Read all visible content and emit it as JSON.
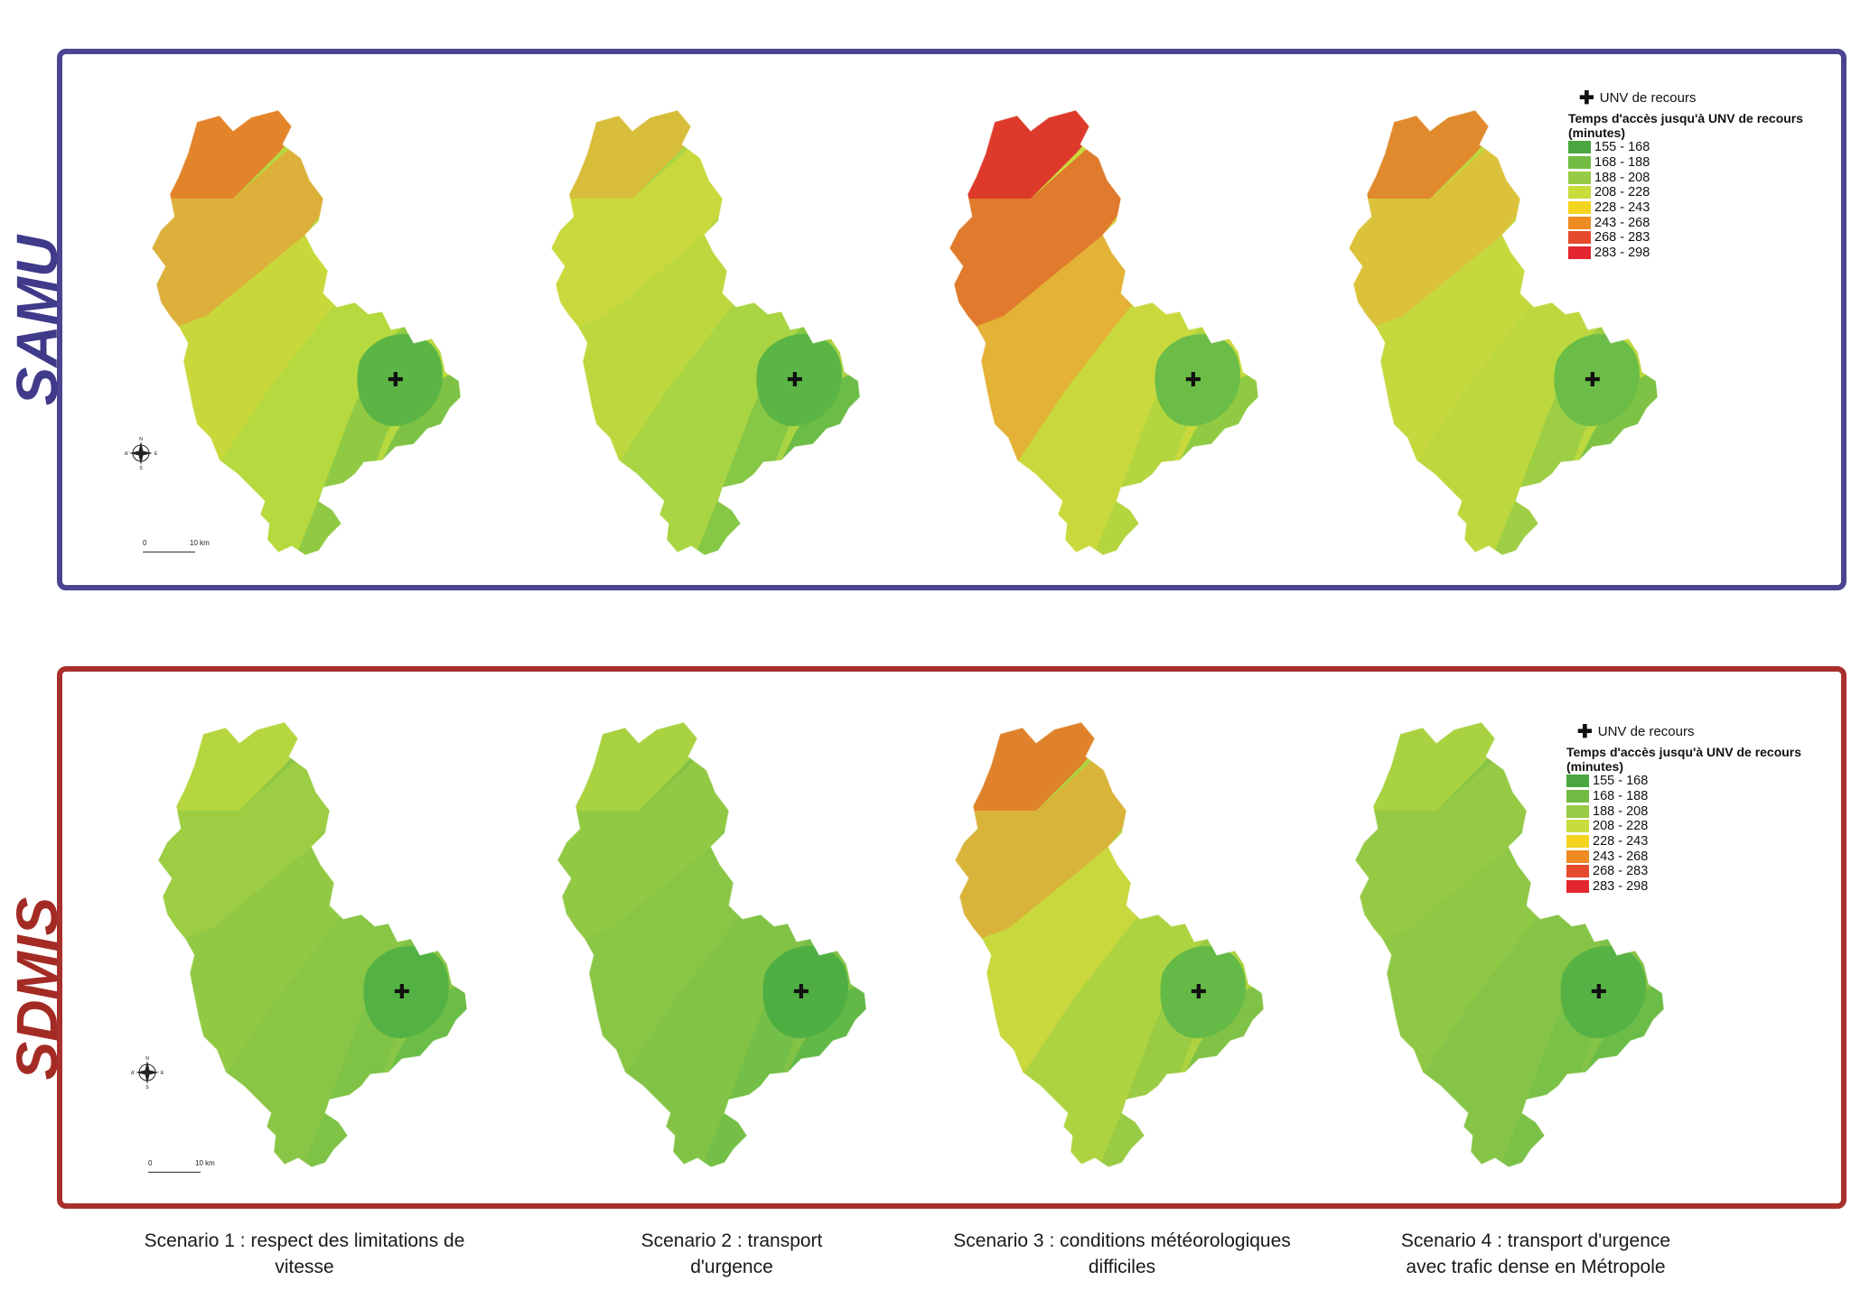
{
  "panels": [
    {
      "id": "samu",
      "label": "SAMU",
      "color": "#4a4590",
      "maps": [
        {
          "zones": [
            "#e3842b",
            "#dcb03a",
            "#c8d83b",
            "#b5d93e",
            "#8fca42",
            "#7dc245",
            "#5bb544"
          ]
        },
        {
          "zones": [
            "#d8bd3a",
            "#c9d93d",
            "#bdd83e",
            "#a9d443",
            "#86c845",
            "#6cbd48",
            "#5bb544"
          ]
        },
        {
          "zones": [
            "#de3a2c",
            "#e07a2c",
            "#e3b236",
            "#c9d93d",
            "#b3d63f",
            "#8fca42",
            "#6cbd48"
          ]
        },
        {
          "zones": [
            "#e08a2d",
            "#dcc23b",
            "#c5d83d",
            "#bcd83e",
            "#9dce43",
            "#7dc245",
            "#6cbd48"
          ]
        }
      ],
      "legend": {
        "unv": "UNV de recours",
        "title": "Temps d'accès jusqu'à UNV de recours (minutes)",
        "classes": [
          {
            "label": "155 - 168",
            "color": "#4aa63f"
          },
          {
            "label": "168 - 188",
            "color": "#71bb43"
          },
          {
            "label": "188 - 208",
            "color": "#98cb45"
          },
          {
            "label": "208 - 228",
            "color": "#c8dc3c"
          },
          {
            "label": "228 - 243",
            "color": "#f3d41f"
          },
          {
            "label": "243 - 268",
            "color": "#ee8b22"
          },
          {
            "label": "268 - 283",
            "color": "#e64a2c"
          },
          {
            "label": "283 - 298",
            "color": "#e2252f"
          }
        ]
      },
      "compass_letters": [
        "N",
        "E",
        "S",
        "W"
      ],
      "scale": {
        "zero": "0",
        "km": "10 km"
      }
    },
    {
      "id": "sdmis",
      "label": "SDMIS",
      "color": "#a8302b",
      "maps": [
        {
          "zones": [
            "#b5d63f",
            "#9ccd43",
            "#92c944",
            "#8ac645",
            "#7ec246",
            "#6cbd48",
            "#54b244"
          ]
        },
        {
          "zones": [
            "#a8d240",
            "#92c944",
            "#8ac645",
            "#82c346",
            "#74bf47",
            "#62b847",
            "#4fae42"
          ]
        },
        {
          "zones": [
            "#e0822c",
            "#d9b43a",
            "#c8d83d",
            "#aed341",
            "#99cb44",
            "#80c246",
            "#64b947"
          ]
        },
        {
          "zones": [
            "#a8d240",
            "#96ca44",
            "#8fc845",
            "#85c446",
            "#7bc147",
            "#6cbd48",
            "#56b244"
          ]
        }
      ],
      "legend": {
        "unv": "UNV de recours",
        "title": "Temps d'accès jusqu'à UNV de recours (minutes)",
        "classes": [
          {
            "label": "155 - 168",
            "color": "#4aa63f"
          },
          {
            "label": "168 - 188",
            "color": "#71bb43"
          },
          {
            "label": "188 - 208",
            "color": "#98cb45"
          },
          {
            "label": "208 - 228",
            "color": "#c8dc3c"
          },
          {
            "label": "228 - 243",
            "color": "#f3d41f"
          },
          {
            "label": "243 - 268",
            "color": "#ee8b22"
          },
          {
            "label": "268 - 283",
            "color": "#e64a2c"
          },
          {
            "label": "283 - 298",
            "color": "#e2252f"
          }
        ]
      },
      "compass_letters": [
        "N",
        "E",
        "S",
        "W"
      ],
      "scale": {
        "zero": "0",
        "km": "10 km"
      }
    }
  ],
  "scenarios": [
    {
      "line1": "Scenario 1 : respect des limitations de",
      "line2": "vitesse"
    },
    {
      "line1": "Scenario 2 : transport",
      "line2": "d'urgence"
    },
    {
      "line1": "Scenario 3 : conditions météorologiques",
      "line2": "difficiles"
    },
    {
      "line1": "Scenario 4 : transport d'urgence",
      "line2": "avec trafic dense en Métropole"
    }
  ]
}
